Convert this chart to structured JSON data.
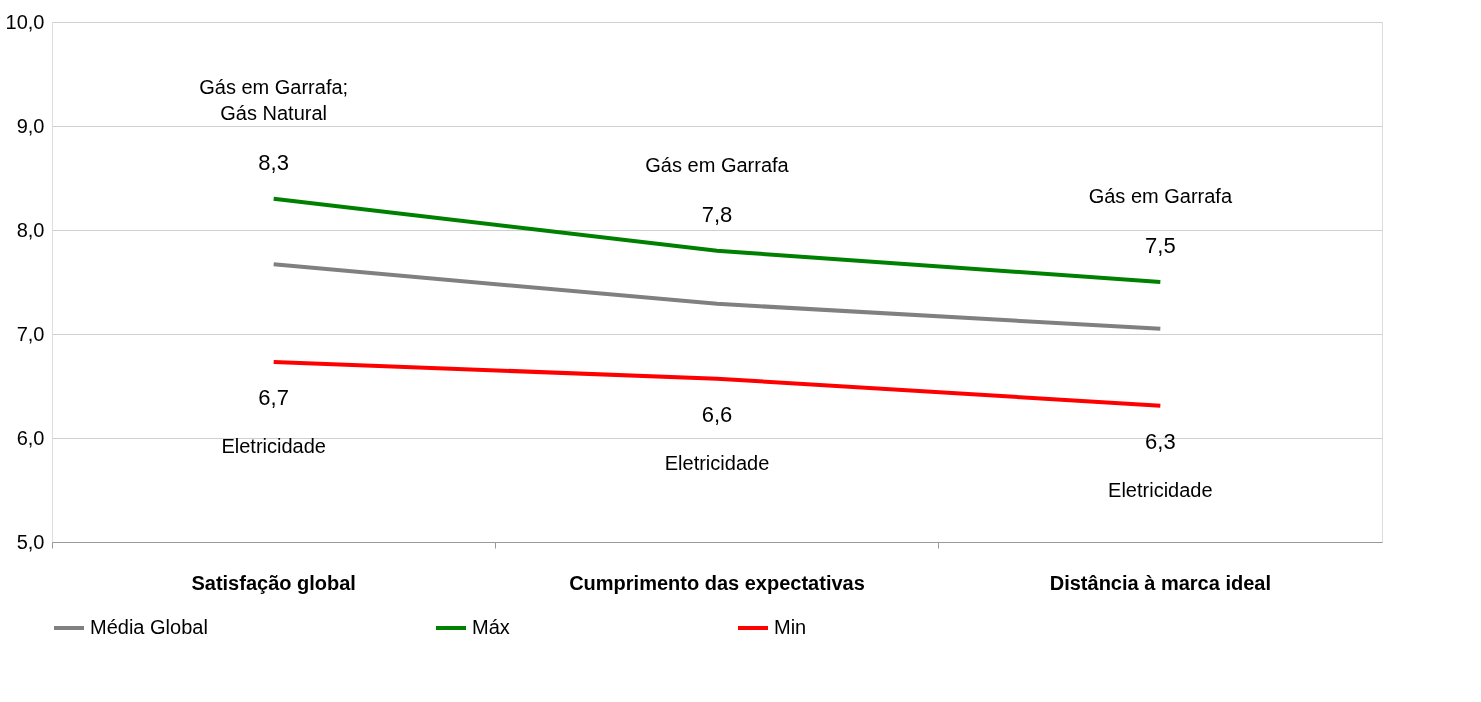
{
  "chart_data": {
    "type": "line",
    "categories": [
      "Satisfação global",
      "Cumprimento das expectativas",
      "Distância à marca ideal"
    ],
    "series": [
      {
        "name": "Média Global",
        "color": "#808080",
        "values": [
          7.67,
          7.29,
          7.05
        ]
      },
      {
        "name": "Máx",
        "color": "#008000",
        "values": [
          8.3,
          7.8,
          7.5
        ],
        "value_labels": [
          "8,3",
          "7,8",
          "7,5"
        ]
      },
      {
        "name": "Min",
        "color": "#ff0000",
        "values": [
          6.73,
          6.57,
          6.31
        ],
        "value_labels": [
          "6,7",
          "6,6",
          "6,3"
        ]
      }
    ],
    "ylim": [
      5,
      10
    ],
    "yticks": [
      {
        "value": 5,
        "label": "5,0"
      },
      {
        "value": 6,
        "label": "6,0"
      },
      {
        "value": 7,
        "label": "7,0"
      },
      {
        "value": 8,
        "label": "8,0"
      },
      {
        "value": 9,
        "label": "9,0"
      },
      {
        "value": 10,
        "label": "10,0"
      }
    ],
    "grid": "y",
    "legend": "bottom",
    "marker": "none",
    "line_style": "solid",
    "annotations": [
      "Gás em Garrafa;\nGás Natural",
      "Gás em Garrafa",
      "Gás em Garrafa",
      "Eletricidade",
      "Eletricidade",
      "Eletricidade"
    ]
  }
}
